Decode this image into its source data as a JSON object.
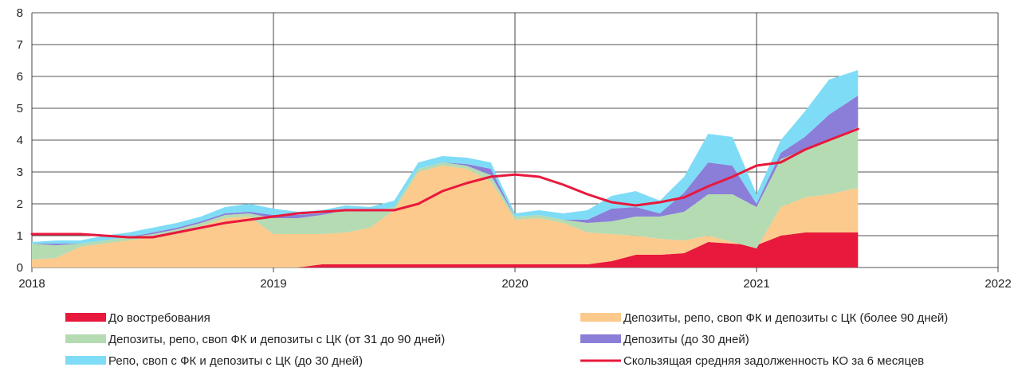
{
  "chart_data": {
    "type": "area",
    "title": "",
    "xlabel": "",
    "ylabel": "",
    "xlim": [
      2018,
      2022
    ],
    "ylim": [
      0,
      8
    ],
    "x_ticks": [
      "2018",
      "2019",
      "2020",
      "2021",
      "2022"
    ],
    "y_ticks": [
      "0",
      "1",
      "2",
      "3",
      "4",
      "5",
      "6",
      "7",
      "8"
    ],
    "grid": true,
    "legend_position": "bottom",
    "x": [
      2018.0,
      2018.1,
      2018.2,
      2018.3,
      2018.4,
      2018.5,
      2018.6,
      2018.7,
      2018.8,
      2018.9,
      2019.0,
      2019.1,
      2019.2,
      2019.3,
      2019.4,
      2019.5,
      2019.6,
      2019.7,
      2019.8,
      2019.9,
      2020.0,
      2020.1,
      2020.2,
      2020.3,
      2020.4,
      2020.5,
      2020.6,
      2020.7,
      2020.8,
      2020.9,
      2021.0,
      2021.1,
      2021.2,
      2021.3,
      2021.42
    ],
    "series": [
      {
        "name": "До востребования",
        "color": "#e8193c",
        "values": [
          0,
          0,
          0,
          0,
          0,
          0,
          0,
          0,
          0,
          0,
          0,
          0,
          0.1,
          0.1,
          0.1,
          0.1,
          0.1,
          0.1,
          0.1,
          0.1,
          0.1,
          0.1,
          0.1,
          0.1,
          0.2,
          0.4,
          0.4,
          0.45,
          0.8,
          0.75,
          0.7,
          1.0,
          1.1,
          1.1,
          1.1
        ]
      },
      {
        "name": "Депозиты, репо, своп ФК и депозиты с ЦК (более 90 дней)",
        "color": "#fbca8c",
        "values": [
          0.25,
          0.3,
          0.65,
          0.75,
          0.85,
          0.95,
          1.1,
          1.3,
          1.55,
          1.6,
          1.05,
          1.05,
          0.95,
          1.0,
          1.15,
          1.7,
          2.9,
          3.1,
          3.0,
          2.6,
          1.4,
          1.45,
          1.3,
          1.0,
          0.85,
          0.6,
          0.5,
          0.4,
          0.2,
          0.05,
          -0.1,
          0.9,
          1.1,
          1.2,
          1.4
        ]
      },
      {
        "name": "Депозиты, репо, своп ФК и депозиты с ЦК (от 31 до 90 дней)",
        "color": "#b5dbb3",
        "values": [
          0.5,
          0.4,
          0.1,
          0.1,
          0.1,
          0.1,
          0.1,
          0.1,
          0.1,
          0.1,
          0.5,
          0.5,
          0.6,
          0.7,
          0.5,
          0.1,
          0.1,
          0.1,
          0.1,
          0.2,
          0.1,
          0.1,
          0.1,
          0.3,
          0.4,
          0.6,
          0.7,
          0.9,
          1.3,
          1.5,
          1.3,
          1.5,
          1.5,
          1.7,
          1.9
        ]
      },
      {
        "name": "Депозиты (до 30 дней)",
        "color": "#8b7ed8",
        "values": [
          0,
          0.05,
          0,
          0,
          0,
          0.05,
          0.05,
          0.05,
          0.05,
          0.05,
          0.1,
          0.1,
          0.05,
          0.05,
          0,
          0,
          0,
          0,
          0.05,
          0.2,
          0,
          0,
          0,
          0.1,
          0.4,
          0.3,
          0.1,
          0.6,
          1.0,
          0.9,
          0.1,
          0.2,
          0.4,
          0.8,
          1.0
        ]
      },
      {
        "name": "Репо, своп с ФК и депозиты с ЦК (до 30 дней)",
        "color": "#7fdcf6",
        "values": [
          0.05,
          0.1,
          0.1,
          0.15,
          0.15,
          0.15,
          0.15,
          0.15,
          0.2,
          0.25,
          0.2,
          0.1,
          0.1,
          0.1,
          0.15,
          0.2,
          0.2,
          0.2,
          0.2,
          0.2,
          0.1,
          0.15,
          0.2,
          0.3,
          0.4,
          0.5,
          0.4,
          0.5,
          0.9,
          0.9,
          0.3,
          0.4,
          0.8,
          1.1,
          0.8
        ]
      }
    ],
    "line_series": {
      "name": "Скользящая средняя задолженность КО за 6 месяцев",
      "color": "#e8193c",
      "values": [
        1.05,
        1.05,
        1.05,
        1.0,
        0.95,
        0.95,
        1.1,
        1.25,
        1.4,
        1.5,
        1.6,
        1.7,
        1.75,
        1.8,
        1.8,
        1.8,
        2.0,
        2.4,
        2.65,
        2.85,
        2.92,
        2.85,
        2.6,
        2.3,
        2.05,
        1.95,
        2.05,
        2.2,
        2.55,
        2.85,
        3.2,
        3.3,
        3.7,
        4.0,
        4.35
      ]
    }
  }
}
